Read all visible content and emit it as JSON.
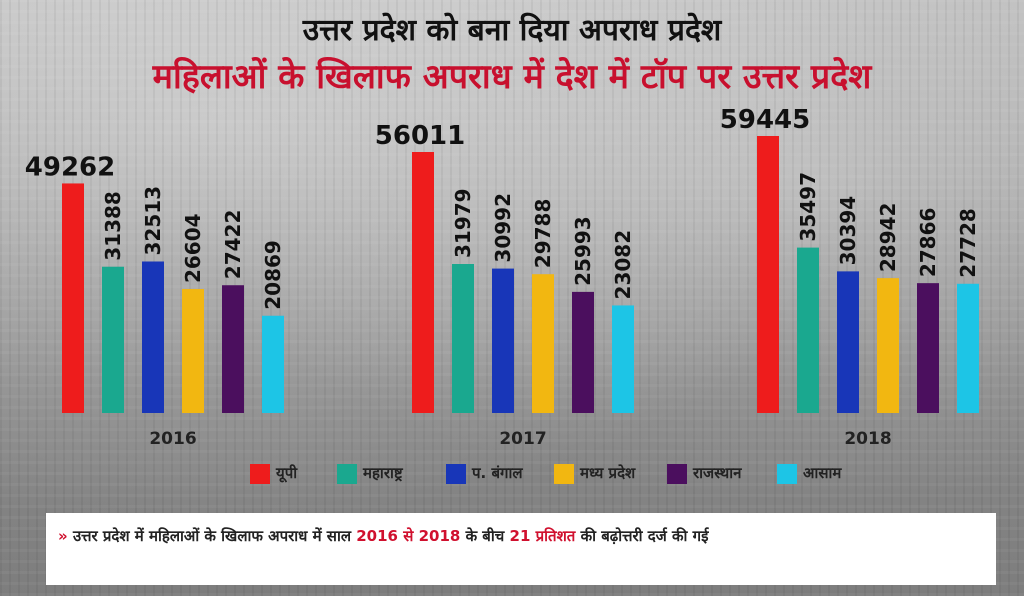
{
  "heading": "उत्तर प्रदेश को बना दिया अपराध प्रदेश",
  "subheading": "महिलाओं के खिलाफ अपराध में देश में टॉप पर उत्तर प्रदेश",
  "colors": {
    "title_red": "#c8102e",
    "accent_red": "#d0102e"
  },
  "chart_data": {
    "type": "bar",
    "title": "महिलाओं के खिलाफ अपराध में देश में टॉप पर उत्तर प्रदेश",
    "categories": [
      "2016",
      "2017",
      "2018"
    ],
    "series": [
      {
        "name": "यूपी",
        "color": "#ee1c1c",
        "values": [
          49262,
          56011,
          59445
        ]
      },
      {
        "name": "महाराष्ट्र",
        "color": "#1aa88f",
        "values": [
          31388,
          31979,
          35497
        ]
      },
      {
        "name": "प. बंगाल",
        "color": "#1836b8",
        "values": [
          32513,
          30992,
          30394
        ]
      },
      {
        "name": "मध्य प्रदेश",
        "color": "#f2b711",
        "values": [
          26604,
          29788,
          28942
        ]
      },
      {
        "name": "राजस्थान",
        "color": "#4b0f5e",
        "values": [
          27422,
          25993,
          27866
        ]
      },
      {
        "name": "आसाम",
        "color": "#1dc5e6",
        "values": [
          20869,
          23082,
          27728
        ]
      }
    ],
    "ylim": [
      0,
      59445
    ],
    "grid": false,
    "legend_position": "bottom"
  },
  "footer": {
    "bullet": "»",
    "part1": "उत्तर प्रदेश में महिलाओं के खिलाफ अपराध में साल",
    "highlight1": "2016 से 2018",
    "part2": "के बीच",
    "highlight2": "21 प्रतिशत",
    "part3": "की बढ़ोत्तरी दर्ज की गई"
  }
}
